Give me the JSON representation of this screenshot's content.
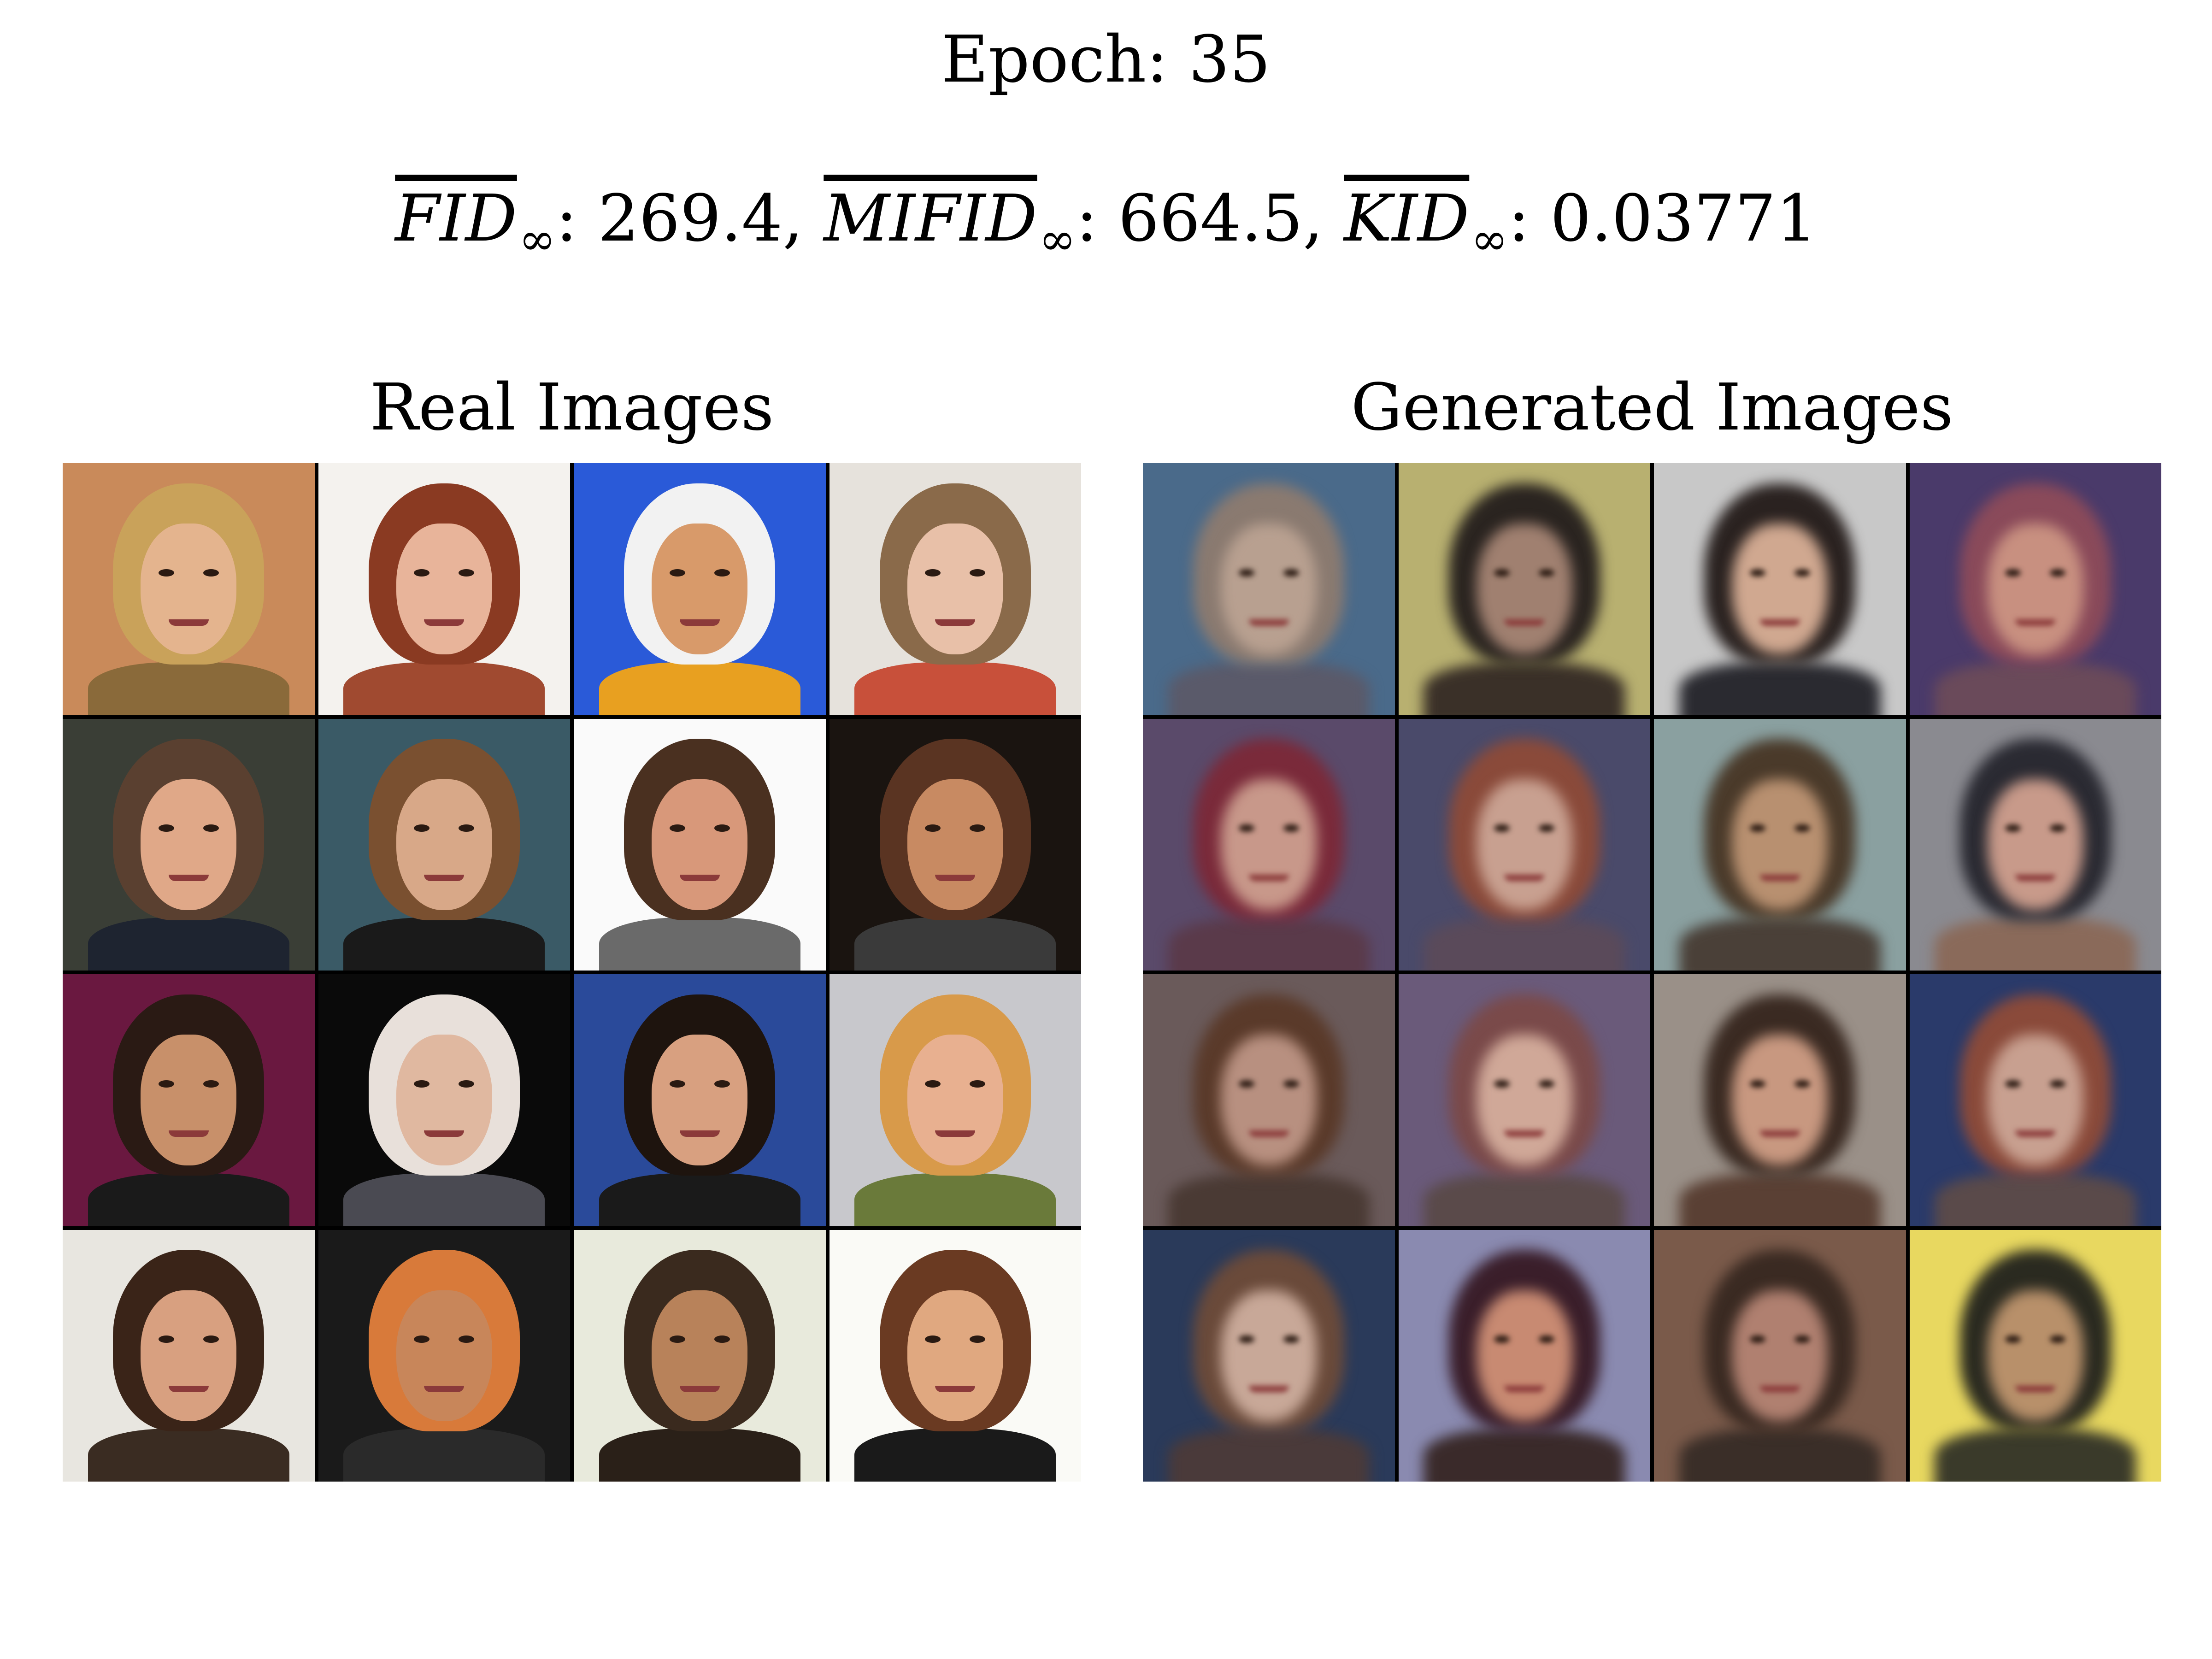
{
  "header": {
    "epoch_label": "Epoch:",
    "epoch_value": "35"
  },
  "metrics": {
    "fid_name": "FID",
    "fid_sub": "∞",
    "fid_value": "269.4",
    "mifid_name": "MIFID",
    "mifid_sub": "∞",
    "mifid_value": "664.5",
    "kid_name": "KID",
    "kid_sub": "∞",
    "kid_value": "0.03771"
  },
  "panels": {
    "real_title": "Real Images",
    "generated_title": "Generated Images"
  },
  "real_tiles": [
    {
      "bg": "#c98a5a",
      "hair": "#c9a25a",
      "skin": "#e4b48e",
      "body": "#8a6a3a"
    },
    {
      "bg": "#f4f2ee",
      "hair": "#8a3a22",
      "skin": "#e8b49a",
      "body": "#a04a30"
    },
    {
      "bg": "#2a5ad8",
      "hair": "#f2f2f2",
      "skin": "#d89a6a",
      "body": "#e8a020"
    },
    {
      "bg": "#e6e2dc",
      "hair": "#8a6a4a",
      "skin": "#e8c0a8",
      "body": "#c8503a"
    },
    {
      "bg": "#3a3e36",
      "hair": "#5a4030",
      "skin": "#e0a888",
      "body": "#1e2430"
    },
    {
      "bg": "#3a5a66",
      "hair": "#7a5030",
      "skin": "#d8a888",
      "body": "#1a1a1a"
    },
    {
      "bg": "#fafafa",
      "hair": "#4a3020",
      "skin": "#d8987a",
      "body": "#6a6a6a"
    },
    {
      "bg": "#1a1410",
      "hair": "#5a3422",
      "skin": "#c88a62",
      "body": "#3a3a3a"
    },
    {
      "bg": "#6a1840",
      "hair": "#2a1a14",
      "skin": "#c8906a",
      "body": "#1a1a1a"
    },
    {
      "bg": "#0a0a0a",
      "hair": "#e8e0da",
      "skin": "#e0b8a0",
      "body": "#4a4a52"
    },
    {
      "bg": "#2a4a9a",
      "hair": "#1e140e",
      "skin": "#d8a080",
      "body": "#1a1a1a"
    },
    {
      "bg": "#c8c8cc",
      "hair": "#d89a4a",
      "skin": "#e8b090",
      "body": "#6a7a3a"
    },
    {
      "bg": "#e8e6e0",
      "hair": "#3a2418",
      "skin": "#d8a080",
      "body": "#3a2c22"
    },
    {
      "bg": "#1a1a1a",
      "hair": "#d87a3a",
      "skin": "#c8865a",
      "body": "#2a2a2a"
    },
    {
      "bg": "#e8eadc",
      "hair": "#3a2a1e",
      "skin": "#b8825a",
      "body": "#2a2018"
    },
    {
      "bg": "#fafaf6",
      "hair": "#6a3a22",
      "skin": "#e0a880",
      "body": "#1a1a1a"
    }
  ],
  "generated_tiles": [
    {
      "bg": "#4a6a8a",
      "hair": "#8a7a70",
      "skin": "#b8a090",
      "body": "#5a5a6a"
    },
    {
      "bg": "#b8b070",
      "hair": "#2a2420",
      "skin": "#a08070",
      "body": "#3a3028"
    },
    {
      "bg": "#c8c8c8",
      "hair": "#2a2220",
      "skin": "#d0a890",
      "body": "#2a2a30"
    },
    {
      "bg": "#4a3a6a",
      "hair": "#8a4a5a",
      "skin": "#c89080",
      "body": "#6a4a5a"
    },
    {
      "bg": "#5a4a6a",
      "hair": "#7a2a3a",
      "skin": "#c8988a",
      "body": "#5a3a4a"
    },
    {
      "bg": "#4a4a6a",
      "hair": "#8a4a3a",
      "skin": "#c8a090",
      "body": "#5a4a5a"
    },
    {
      "bg": "#8aa0a0",
      "hair": "#4a3a2a",
      "skin": "#b89070",
      "body": "#4a4038"
    },
    {
      "bg": "#8a8a90",
      "hair": "#2a2a32",
      "skin": "#c89a8a",
      "body": "#8a6a5a"
    },
    {
      "bg": "#6a5a5a",
      "hair": "#5a3a2a",
      "skin": "#b89080",
      "body": "#4a3a34"
    },
    {
      "bg": "#6a5a7a",
      "hair": "#7a4a4a",
      "skin": "#d0a898",
      "body": "#5a4a4a"
    },
    {
      "bg": "#9a9088",
      "hair": "#3a2a22",
      "skin": "#c89880",
      "body": "#5a4034"
    },
    {
      "bg": "#2a3a6a",
      "hair": "#8a4a3a",
      "skin": "#c8a090",
      "body": "#5a4a4a"
    },
    {
      "bg": "#2a3a5a",
      "hair": "#6a4a3a",
      "skin": "#c8a898",
      "body": "#4a3a3a"
    },
    {
      "bg": "#8a8ab0",
      "hair": "#3a1e2a",
      "skin": "#c88a72",
      "body": "#3a2a2a"
    },
    {
      "bg": "#7a5a4a",
      "hair": "#3a2a22",
      "skin": "#b08070",
      "body": "#3a2e28"
    },
    {
      "bg": "#e8d860",
      "hair": "#2a2a20",
      "skin": "#b8906a",
      "body": "#3a3a2a"
    }
  ]
}
